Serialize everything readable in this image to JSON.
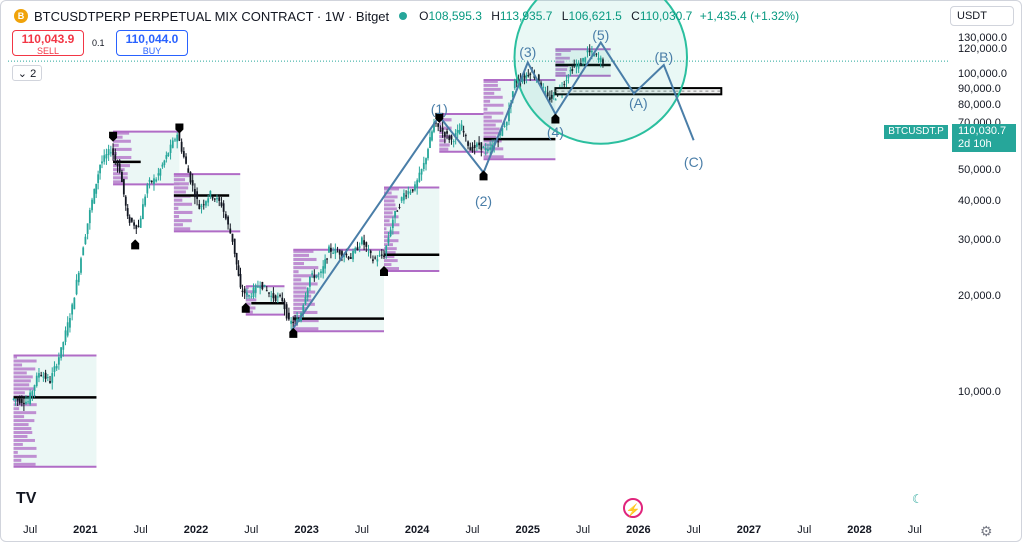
{
  "header": {
    "logo_glyph": "B",
    "title": "BTCUSDTPERP PERPETUAL MIX CONTRACT · 1W · Bitget",
    "open_key": "O",
    "open": "108,595.3",
    "high_key": "H",
    "high": "113,935.7",
    "low_key": "L",
    "low": "106,621.5",
    "close_key": "C",
    "close": "110,030.7",
    "change": "+1,435.4 (+1.32%)"
  },
  "trade": {
    "sell_price": "110,043.9",
    "sell_label": "SELL",
    "spread": "0.1",
    "buy_price": "110,044.0",
    "buy_label": "BUY"
  },
  "indicator_toggle": "2",
  "currency_select": "USDT",
  "price_scale": {
    "labels": [
      "130,000.0",
      "120,000.0",
      "100,000.0",
      "90,000.0",
      "80,000.0",
      "70,000.0",
      "60,000.0",
      "50,000.0",
      "40,000.0",
      "30,000.0",
      "20,000.0",
      "10,000.0"
    ],
    "symbol_tag": "BTCUSDT.P",
    "last_price": "110,030.7",
    "countdown": "2d 10h"
  },
  "time_scale": {
    "labels": [
      {
        "t": "Jul",
        "year": false
      },
      {
        "t": "2021",
        "year": true
      },
      {
        "t": "Jul",
        "year": false
      },
      {
        "t": "2022",
        "year": true
      },
      {
        "t": "Jul",
        "year": false
      },
      {
        "t": "2023",
        "year": true
      },
      {
        "t": "Jul",
        "year": false
      },
      {
        "t": "2024",
        "year": true
      },
      {
        "t": "Jul",
        "year": false
      },
      {
        "t": "2025",
        "year": true
      },
      {
        "t": "Jul",
        "year": false
      },
      {
        "t": "2026",
        "year": true
      },
      {
        "t": "Jul",
        "year": false
      },
      {
        "t": "2027",
        "year": true
      },
      {
        "t": "Jul",
        "year": false
      },
      {
        "t": "2028",
        "year": true
      },
      {
        "t": "Jul",
        "year": false
      }
    ]
  },
  "watermark": "TV",
  "icons": {
    "settings": "gear-icon",
    "bolt": "lightning-icon",
    "theme": "moon-icon"
  },
  "colors": {
    "up": "#26a69a",
    "down": "#131722",
    "volume_profile": "#b06cc6",
    "wave": "#4a7ea8",
    "circle": "#2bbf9f",
    "last_price": "#26a69a"
  },
  "wave_labels": [
    {
      "text": "(1)",
      "date": 2024.2,
      "price": 78000
    },
    {
      "text": "(2)",
      "date": 2024.6,
      "price": 40000
    },
    {
      "text": "(3)",
      "date": 2025.0,
      "price": 118000
    },
    {
      "text": "(4)",
      "date": 2025.25,
      "price": 66000
    },
    {
      "text": "(5)",
      "date": 2025.66,
      "price": 133000
    },
    {
      "text": "(A)",
      "date": 2026.0,
      "price": 81000
    },
    {
      "text": "(B)",
      "date": 2026.23,
      "price": 113000
    },
    {
      "text": "(C)",
      "date": 2026.5,
      "price": 53000
    }
  ],
  "chart_data": {
    "type": "candlestick",
    "x_unit": "year",
    "y_unit": "USDT",
    "xlim": [
      2020.3,
      2028.8
    ],
    "ylim": [
      4000,
      142000
    ],
    "price_series": [
      [
        2020.35,
        9500
      ],
      [
        2020.5,
        9300
      ],
      [
        2020.6,
        11500
      ],
      [
        2020.7,
        10800
      ],
      [
        2020.8,
        13500
      ],
      [
        2020.9,
        18500
      ],
      [
        2021.0,
        29000
      ],
      [
        2021.08,
        40000
      ],
      [
        2021.15,
        52000
      ],
      [
        2021.25,
        58000
      ],
      [
        2021.33,
        50000
      ],
      [
        2021.4,
        35000
      ],
      [
        2021.5,
        33000
      ],
      [
        2021.58,
        45000
      ],
      [
        2021.66,
        47000
      ],
      [
        2021.75,
        55000
      ],
      [
        2021.85,
        65000
      ],
      [
        2021.95,
        49000
      ],
      [
        2022.05,
        38000
      ],
      [
        2022.15,
        42000
      ],
      [
        2022.25,
        39000
      ],
      [
        2022.35,
        30000
      ],
      [
        2022.42,
        21000
      ],
      [
        2022.5,
        20000
      ],
      [
        2022.6,
        22000
      ],
      [
        2022.7,
        20000
      ],
      [
        2022.8,
        19500
      ],
      [
        2022.86,
        16500
      ],
      [
        2022.95,
        16800
      ],
      [
        2023.05,
        23000
      ],
      [
        2023.15,
        23500
      ],
      [
        2023.22,
        28000
      ],
      [
        2023.32,
        27500
      ],
      [
        2023.42,
        26500
      ],
      [
        2023.52,
        30000
      ],
      [
        2023.62,
        26000
      ],
      [
        2023.72,
        27000
      ],
      [
        2023.8,
        35000
      ],
      [
        2023.9,
        42000
      ],
      [
        2024.0,
        44000
      ],
      [
        2024.08,
        52000
      ],
      [
        2024.17,
        70000
      ],
      [
        2024.25,
        66000
      ],
      [
        2024.33,
        62000
      ],
      [
        2024.42,
        68000
      ],
      [
        2024.5,
        58000
      ],
      [
        2024.58,
        60000
      ],
      [
        2024.66,
        57000
      ],
      [
        2024.75,
        63000
      ],
      [
        2024.83,
        72000
      ],
      [
        2024.9,
        95000
      ],
      [
        2024.97,
        97000
      ],
      [
        2025.04,
        102000
      ],
      [
        2025.12,
        96000
      ],
      [
        2025.2,
        84000
      ],
      [
        2025.27,
        85000
      ],
      [
        2025.35,
        95000
      ],
      [
        2025.42,
        105000
      ],
      [
        2025.5,
        108000
      ],
      [
        2025.56,
        118000
      ],
      [
        2025.62,
        115000
      ],
      [
        2025.66,
        112000
      ],
      [
        2025.7,
        110000
      ]
    ],
    "wave_points": [
      {
        "label": "start",
        "x": 2022.86,
        "y": 15500
      },
      {
        "label": "(1)",
        "x": 2024.2,
        "y": 73800
      },
      {
        "label": "(2)",
        "x": 2024.6,
        "y": 49000
      },
      {
        "label": "(3)",
        "x": 2025.0,
        "y": 109000
      },
      {
        "label": "(4)",
        "x": 2025.25,
        "y": 75000
      },
      {
        "label": "(5)",
        "x": 2025.66,
        "y": 126000
      },
      {
        "label": "(A)",
        "x": 2025.96,
        "y": 87000
      },
      {
        "label": "(B)",
        "x": 2026.23,
        "y": 107000
      },
      {
        "label": "(C)",
        "x": 2026.5,
        "y": 62000
      }
    ],
    "zone": {
      "x0": 2025.25,
      "x1": 2026.75,
      "y0": 86500,
      "y1": 90500
    },
    "pivot_highs": [
      [
        2021.25,
        65000
      ],
      [
        2021.85,
        69000
      ],
      [
        2024.2,
        74500
      ]
    ],
    "pivot_lows": [
      [
        2021.45,
        28500
      ],
      [
        2022.45,
        18000
      ],
      [
        2022.88,
        15000
      ],
      [
        2023.7,
        23500
      ],
      [
        2024.6,
        47000
      ],
      [
        2025.25,
        71000
      ]
    ],
    "poc_lines": [
      {
        "x0": 2020.35,
        "x1": 2021.1,
        "y": 9600
      },
      {
        "x0": 2021.25,
        "x1": 2021.5,
        "y": 53000
      },
      {
        "x0": 2021.8,
        "x1": 2022.3,
        "y": 41500
      },
      {
        "x0": 2022.5,
        "x1": 2022.8,
        "y": 19000
      },
      {
        "x0": 2022.88,
        "x1": 2023.7,
        "y": 17000
      },
      {
        "x0": 2023.7,
        "x1": 2024.2,
        "y": 27000
      },
      {
        "x0": 2024.6,
        "x1": 2025.25,
        "y": 62500
      },
      {
        "x0": 2025.25,
        "x1": 2025.75,
        "y": 107000
      }
    ],
    "volume_profile_boxes": [
      {
        "x0": 2020.35,
        "x1": 2021.1,
        "y0": 5800,
        "y1": 13000
      },
      {
        "x0": 2021.25,
        "x1": 2021.85,
        "y0": 45000,
        "y1": 66000
      },
      {
        "x0": 2021.8,
        "x1": 2022.4,
        "y0": 32000,
        "y1": 48500
      },
      {
        "x0": 2022.45,
        "x1": 2022.8,
        "y0": 17500,
        "y1": 21500
      },
      {
        "x0": 2022.88,
        "x1": 2023.7,
        "y0": 15500,
        "y1": 28000
      },
      {
        "x0": 2023.7,
        "x1": 2024.2,
        "y0": 24000,
        "y1": 44000
      },
      {
        "x0": 2024.2,
        "x1": 2024.6,
        "y0": 57000,
        "y1": 75000
      },
      {
        "x0": 2024.6,
        "x1": 2025.25,
        "y0": 54000,
        "y1": 96000
      },
      {
        "x0": 2025.25,
        "x1": 2025.75,
        "y0": 99000,
        "y1": 120000
      }
    ],
    "circle": {
      "cx": 2025.66,
      "cy": 113000,
      "r_years": 0.78
    },
    "last_price": 110030.7
  }
}
